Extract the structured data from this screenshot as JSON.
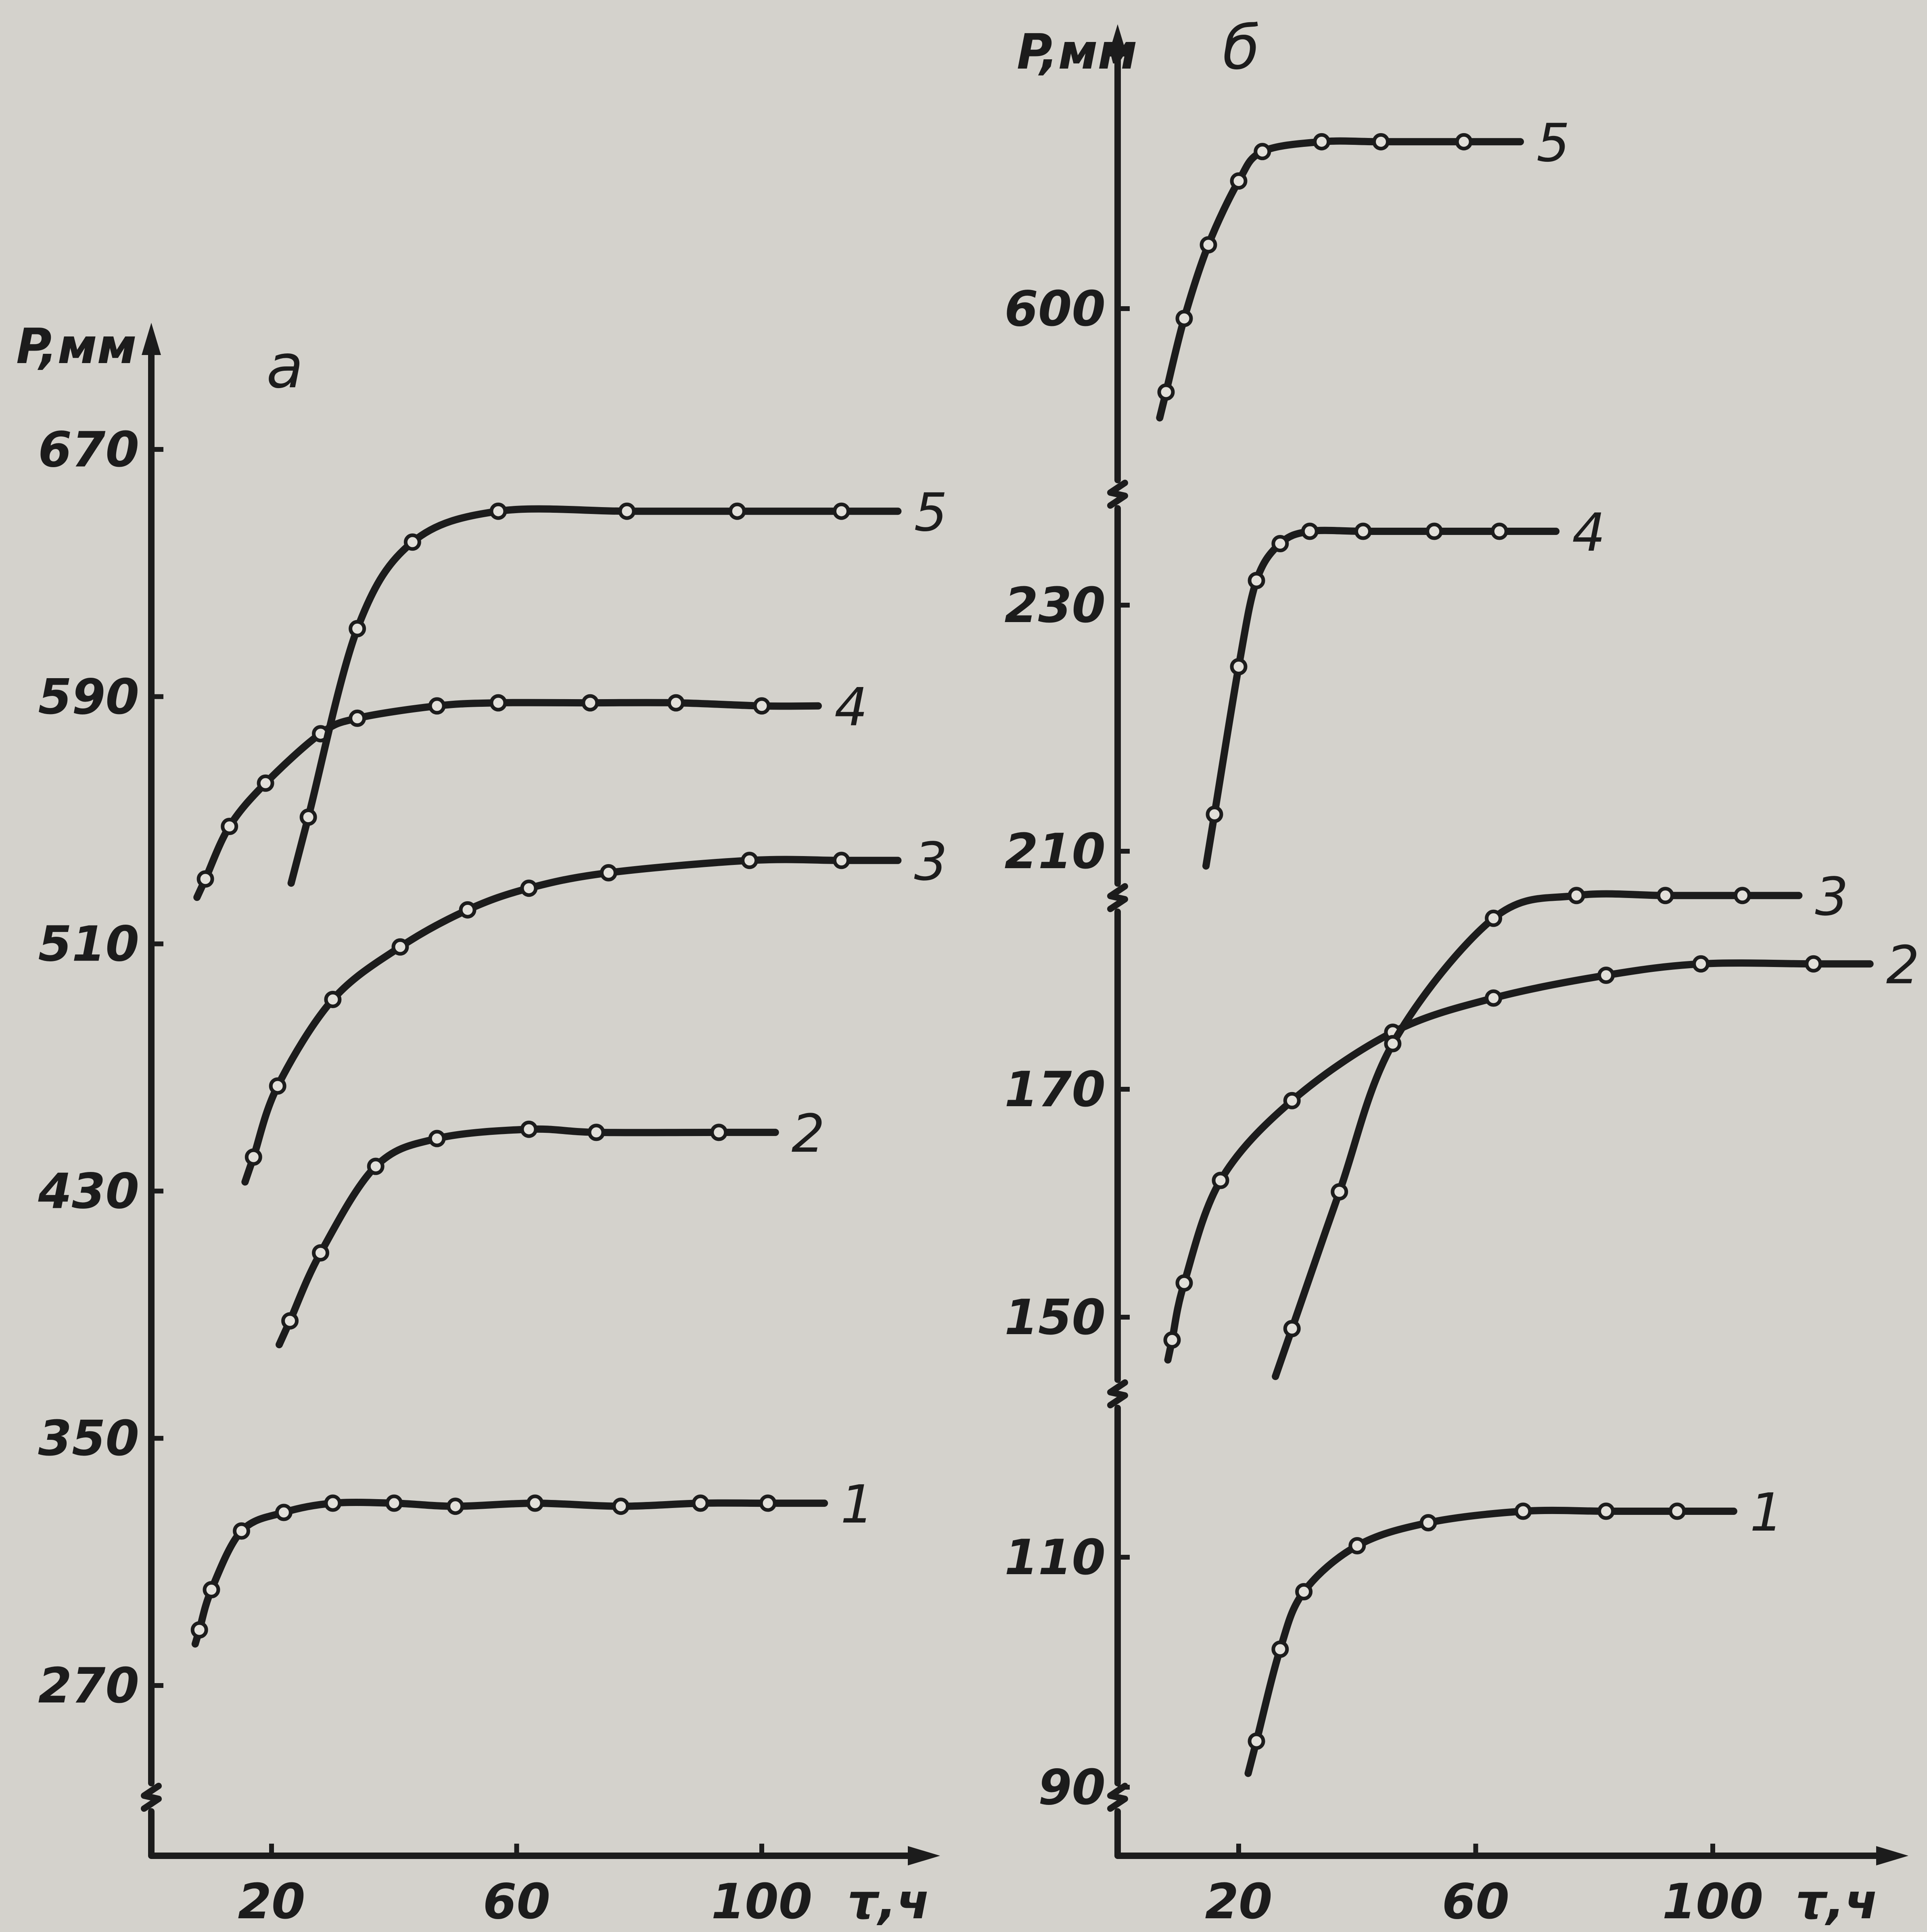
{
  "chart_data": [
    {
      "type": "line",
      "panel": "a",
      "xlabel": "τ,ч",
      "ylabel": "P,мм",
      "xlim": [
        0,
        130
      ],
      "ylim": [
        250,
        700
      ],
      "x_ticks": [
        "20",
        "60",
        "100"
      ],
      "y_ticks": [
        "270",
        "350",
        "430",
        "510",
        "590",
        "670"
      ],
      "series": [
        {
          "name": "1",
          "x": [
            8,
            10,
            15,
            22,
            30,
            40,
            50,
            63,
            77,
            90,
            101
          ],
          "y": [
            288,
            301,
            320,
            326,
            329,
            329,
            328,
            329,
            328,
            329,
            329
          ]
        },
        {
          "name": "2",
          "x": [
            23,
            28,
            37,
            47,
            62,
            73,
            93
          ],
          "y": [
            388,
            410,
            438,
            447,
            450,
            449,
            449
          ]
        },
        {
          "name": "3",
          "x": [
            17,
            21,
            30,
            41,
            52,
            62,
            75,
            98,
            113
          ],
          "y": [
            441,
            464,
            492,
            509,
            521,
            528,
            533,
            537,
            537
          ]
        },
        {
          "name": "4",
          "x": [
            9,
            13,
            19,
            28,
            34,
            47,
            57,
            72,
            86,
            100
          ],
          "y": [
            531,
            548,
            562,
            578,
            583,
            587,
            588,
            588,
            588,
            587
          ]
        },
        {
          "name": "5",
          "x": [
            26,
            34,
            43,
            57,
            78,
            96,
            113
          ],
          "y": [
            551,
            612,
            640,
            650,
            650,
            650,
            650
          ]
        }
      ]
    },
    {
      "type": "line",
      "panel": "б",
      "xlabel": "τ,ч",
      "ylabel": "P,мм",
      "xlim": [
        0,
        130
      ],
      "x_ticks": [
        "20",
        "60",
        "100"
      ],
      "y_ticks": [
        "90",
        "110",
        "150",
        "170",
        "210",
        "230",
        "600"
      ],
      "series": [
        {
          "name": "1",
          "x": [
            23,
            27,
            31,
            40,
            52,
            68,
            82,
            94
          ],
          "y": [
            94,
            102,
            107,
            111,
            113,
            114,
            114,
            114
          ]
        },
        {
          "name": "2",
          "x": [
            9,
            11,
            17,
            29,
            46,
            63,
            82,
            98,
            117
          ],
          "y": [
            148,
            153,
            162,
            169,
            175,
            178,
            180,
            181,
            181
          ]
        },
        {
          "name": "3",
          "x": [
            29,
            37,
            46,
            63,
            77,
            92,
            105
          ],
          "y": [
            149,
            161,
            174,
            185,
            187,
            187,
            187
          ]
        },
        {
          "name": "4",
          "x": [
            16,
            20,
            23,
            27,
            32,
            41,
            53,
            64
          ],
          "y": [
            213,
            225,
            232,
            235,
            236,
            236,
            236,
            236
          ]
        },
        {
          "name": "5",
          "x": [
            8,
            11,
            15,
            20,
            24,
            34,
            44,
            58
          ],
          "y": [
            583,
            598,
            613,
            626,
            632,
            634,
            634,
            634
          ]
        }
      ]
    }
  ]
}
